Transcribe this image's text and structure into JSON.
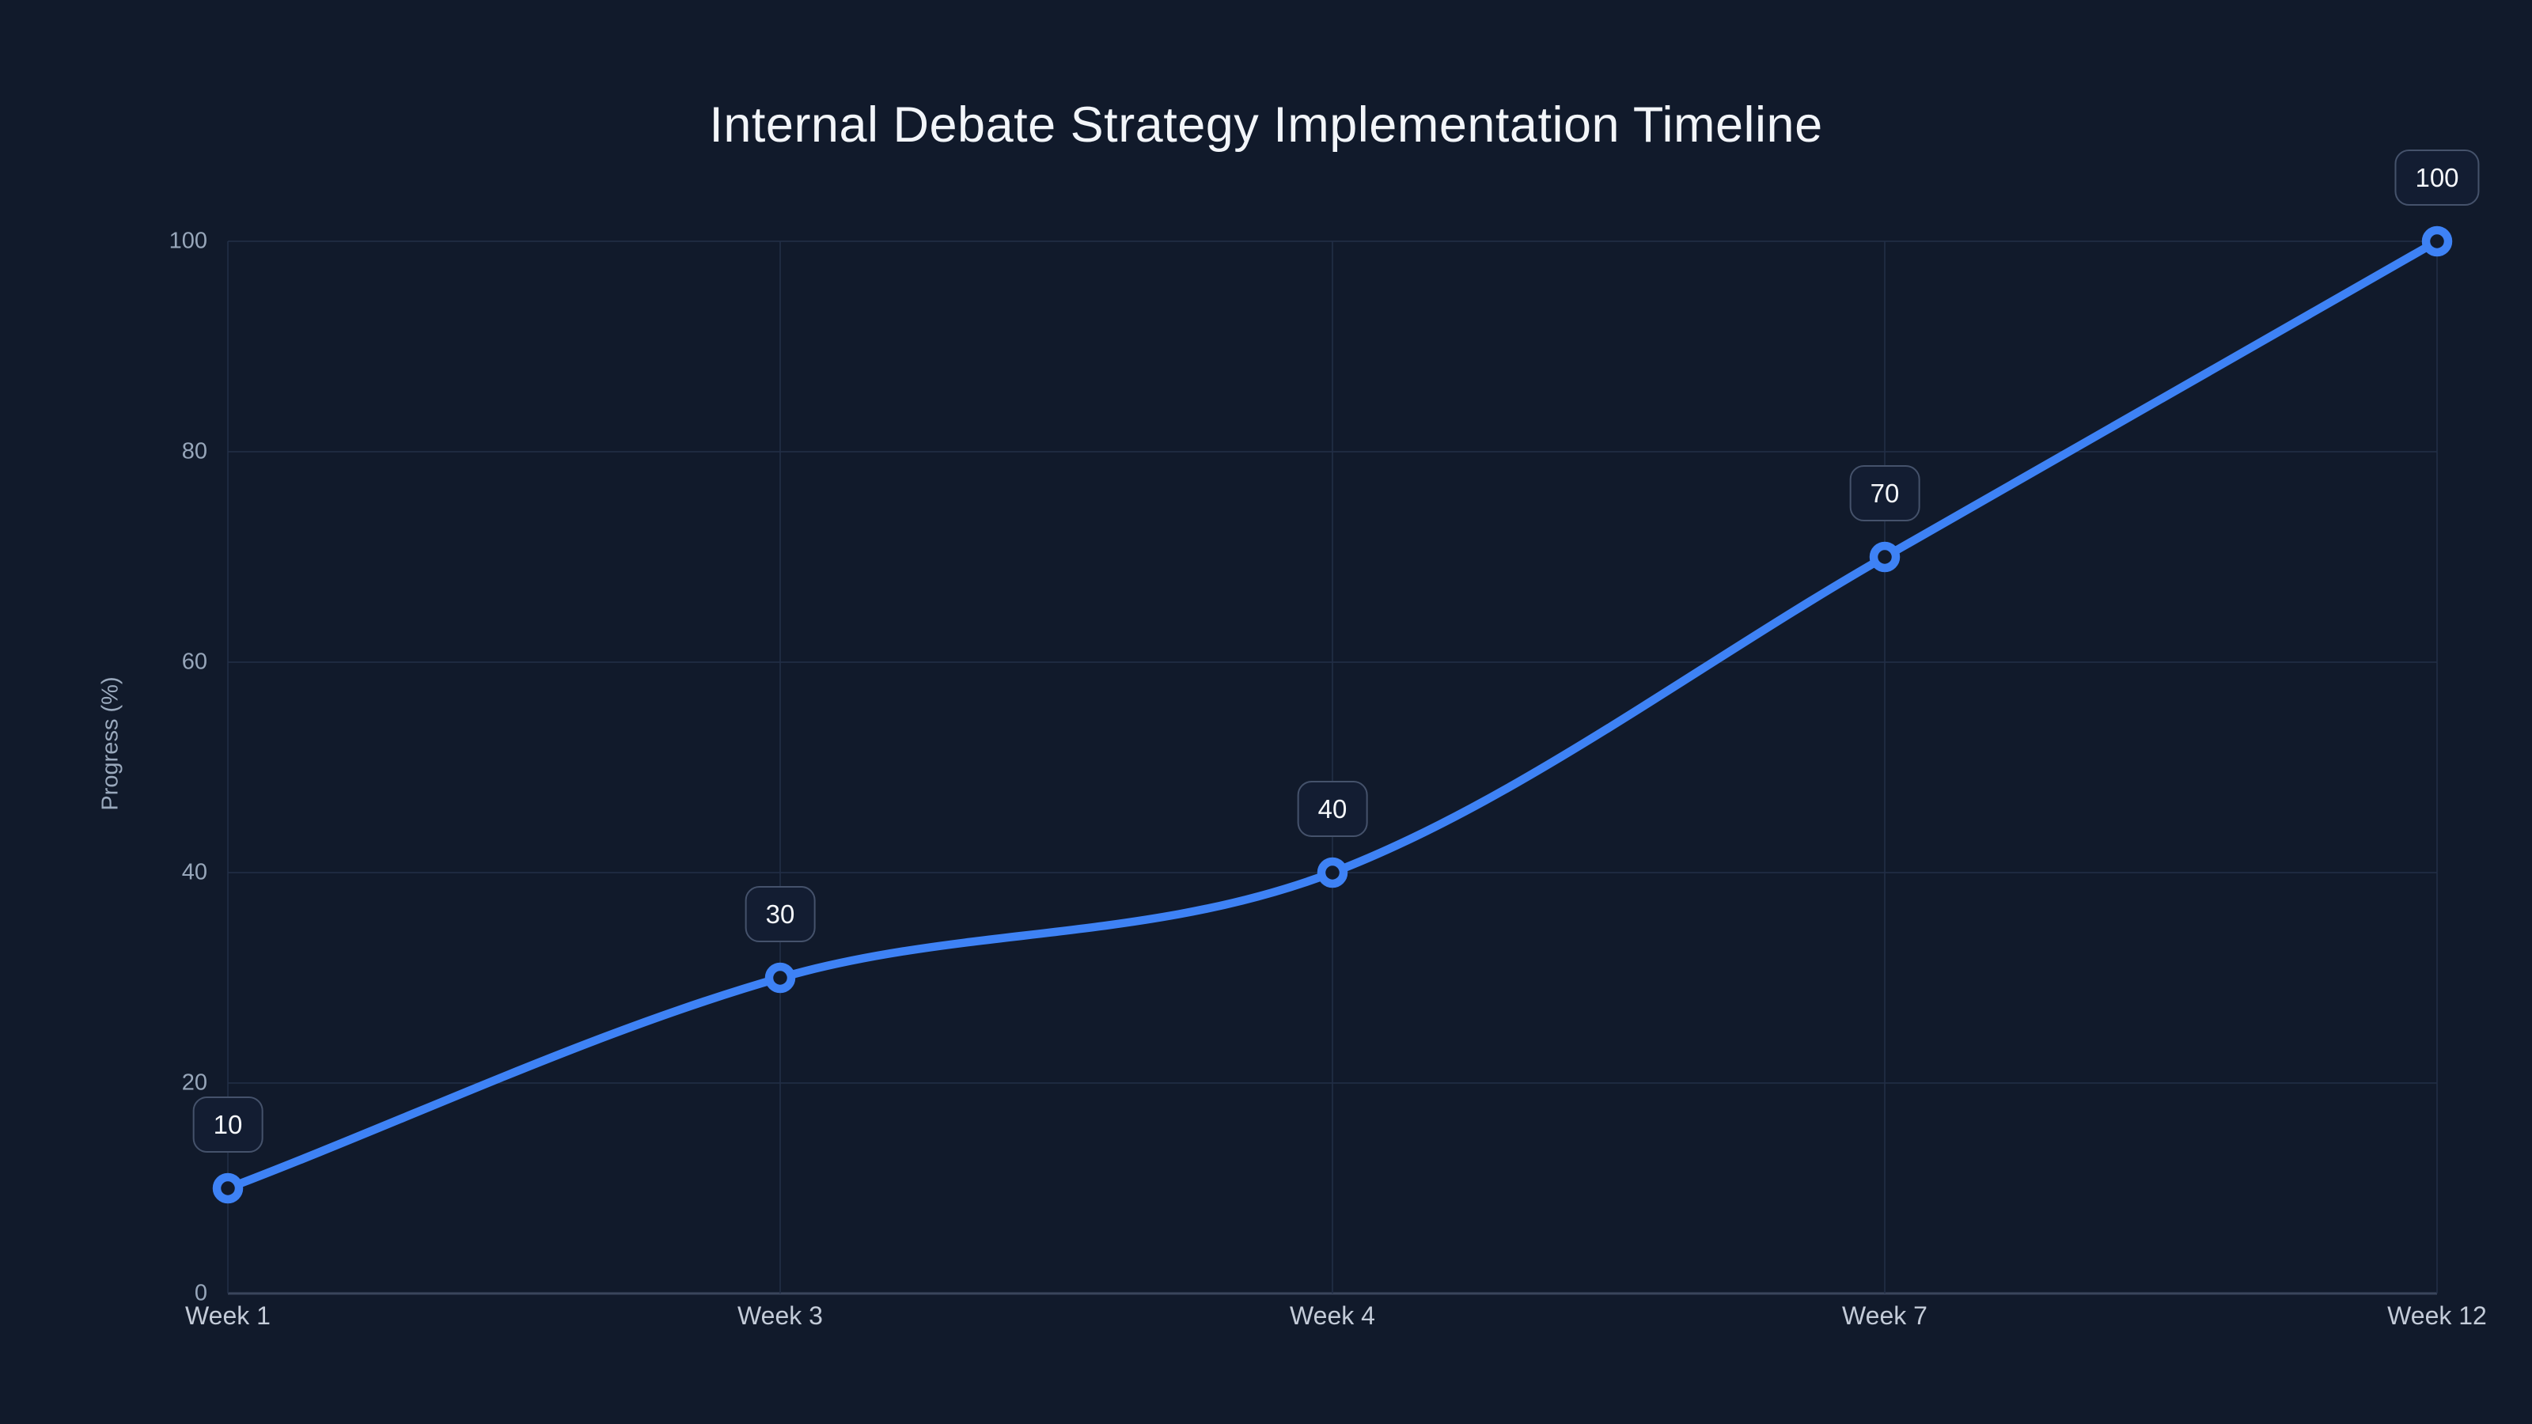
{
  "page": {
    "background_color": "#111a2b"
  },
  "chart_data": {
    "type": "line",
    "title": "Internal Debate Strategy Implementation Timeline",
    "xlabel": "",
    "ylabel": "Progress (%)",
    "categories": [
      "Week 1",
      "Week 3",
      "Week 4",
      "Week 7",
      "Week 12"
    ],
    "series": [
      {
        "name": "Progress (%)",
        "values": [
          10,
          30,
          40,
          70,
          100
        ]
      }
    ],
    "data_labels": [
      "10",
      "30",
      "40",
      "70",
      "100"
    ],
    "ylim": [
      0,
      100
    ],
    "yticks": [
      0,
      20,
      40,
      60,
      80,
      100
    ],
    "grid": true,
    "legend": "none",
    "curve": "monotone",
    "marker_style": "open-circle",
    "colors": {
      "line": "#3e82f5",
      "marker_ring": "#3e82f5",
      "marker_fill": "#111a2b",
      "gridline": "#232f47",
      "axis_line": "#3a465c",
      "y_tick_text": "#97a6ba",
      "x_tick_text": "#c3cbd8",
      "axis_title_text": "#9aa9bd",
      "chart_title_text": "#f2f5f9",
      "badge_background": "#131d32",
      "badge_border": "#45526b",
      "badge_text": "#f5f7fa"
    }
  }
}
